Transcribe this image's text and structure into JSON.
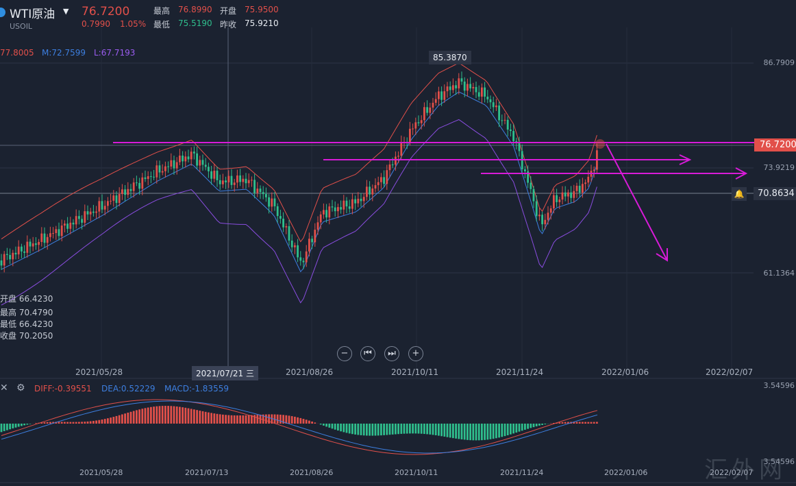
{
  "header": {
    "name": "WTI原油",
    "symbol": "USOIL",
    "price": "76.7200",
    "change": "0.7990",
    "change_pct": "1.05%",
    "high_label": "最高",
    "high": "76.8990",
    "open_label": "开盘",
    "open": "75.9500",
    "low_label": "最低",
    "low": "75.5190",
    "prev_label": "昨收",
    "prev": "75.9210"
  },
  "boll": {
    "u": "77.8005",
    "m": "M:72.7599",
    "l": "L:67.7193"
  },
  "ohlc_panel": {
    "open": "开盘 66.4230",
    "high": "最高 70.4790",
    "low": "最低 66.4230",
    "close": "收盘 70.2050"
  },
  "yaxis": [
    "86.7909",
    "73.9219",
    "61.1364"
  ],
  "price_tag": "76.7200",
  "alert_tag": "70.8634",
  "peak_tag": "85.3870",
  "xaxis": [
    "2021/05/28",
    "2021/08/26",
    "2021/10/11",
    "2021/11/24",
    "2022/01/06",
    "2022/02/07"
  ],
  "crosshair_date": "2021/07/21 三",
  "xaxis2": [
    "2021/05/28",
    "2021/07/13",
    "2021/08/26",
    "2021/10/11",
    "2021/11/24",
    "2022/01/06",
    "2022/02/07"
  ],
  "macd": {
    "diff": "DIFF:-0.39551",
    "dea": "DEA:0.52229",
    "macd": "MACD:-1.83559"
  },
  "macd_axis": [
    "3.54596",
    "3.54596"
  ],
  "watermark": "汇外网",
  "colors": {
    "up": "#e2504a",
    "down": "#2fbf8d",
    "upper": "#e2504a",
    "mid": "#3d7fe0",
    "lower": "#8a4de0",
    "drawing": "#d81bd8"
  }
}
